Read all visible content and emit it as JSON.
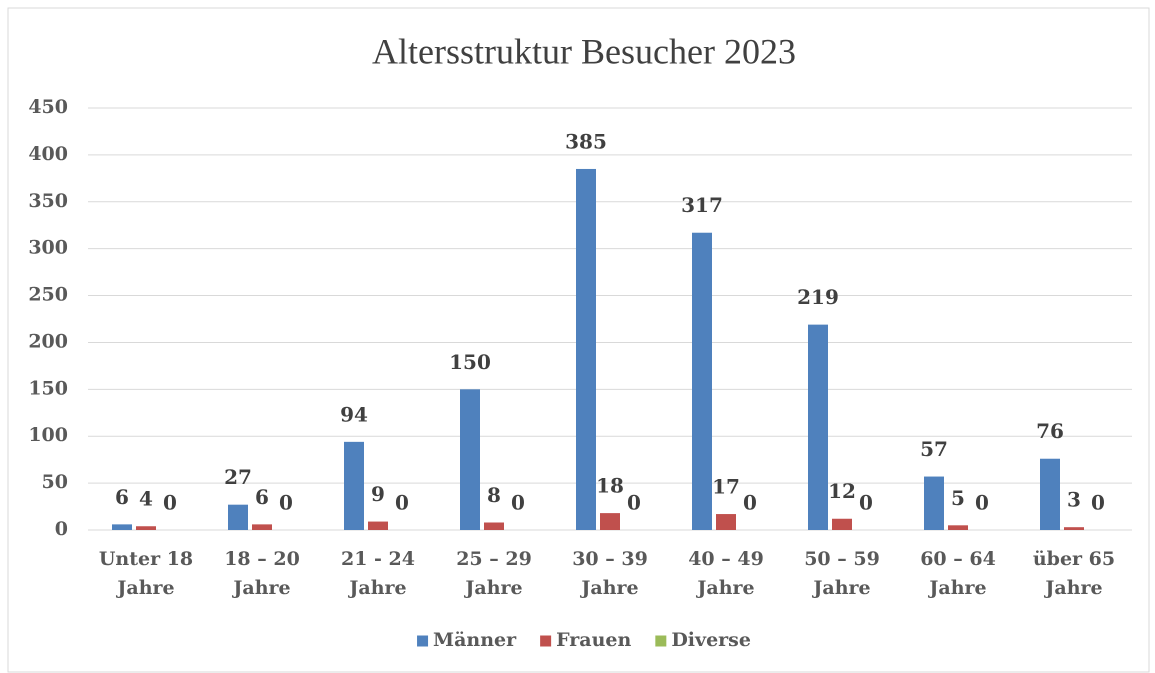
{
  "chart_data": {
    "type": "bar",
    "title": "Altersstruktur Besucher 2023",
    "categories": [
      "Unter 18 Jahre",
      "18 – 20 Jahre",
      "21 - 24 Jahre",
      "25 – 29 Jahre",
      "30 – 39 Jahre",
      "40 – 49 Jahre",
      "50 – 59 Jahre",
      "60 – 64 Jahre",
      "über 65 Jahre"
    ],
    "series": [
      {
        "name": "Männer",
        "color": "#4f81bd",
        "values": [
          6,
          27,
          94,
          150,
          385,
          317,
          219,
          57,
          76
        ]
      },
      {
        "name": "Frauen",
        "color": "#c0504d",
        "values": [
          4,
          6,
          9,
          8,
          18,
          17,
          12,
          5,
          3
        ]
      },
      {
        "name": "Diverse",
        "color": "#9bbb59",
        "values": [
          0,
          0,
          0,
          0,
          0,
          0,
          0,
          0,
          0
        ]
      }
    ],
    "ylim": [
      0,
      450
    ],
    "yticks": [
      0,
      50,
      100,
      150,
      200,
      250,
      300,
      350,
      400,
      450
    ],
    "grid": true,
    "legend": "bottom"
  }
}
